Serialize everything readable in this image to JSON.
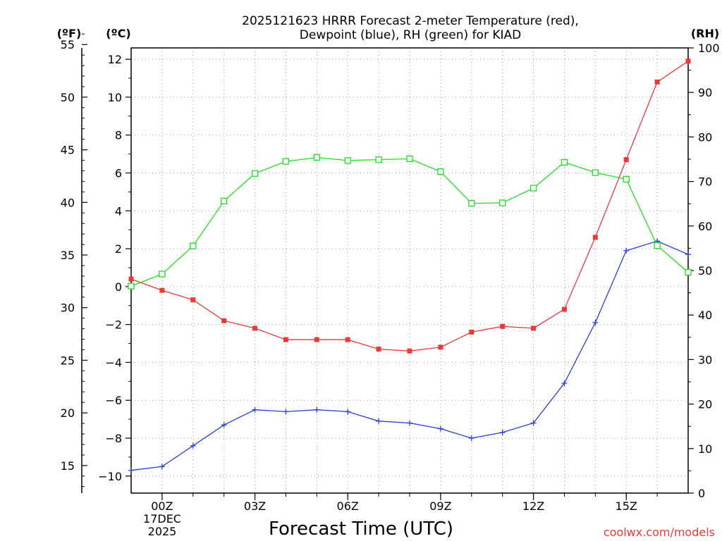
{
  "chart_data": {
    "type": "line",
    "title_line1": "2025121623 HRRR Forecast 2-meter Temperature (red),",
    "title_line2": "Dewpoint (blue), RH (green) for KIAD",
    "xlabel": "Forecast Time (UTC)",
    "credit": "coolwx.com/models",
    "date_label_1": "17DEC",
    "date_label_2": "2025",
    "x_hours": [
      -1,
      0,
      1,
      2,
      3,
      4,
      5,
      6,
      7,
      8,
      9,
      10,
      11,
      12,
      13,
      14,
      15,
      16,
      17
    ],
    "xlim": [
      -1,
      17
    ],
    "x_ticks": [
      {
        "hour": 0,
        "label": "00Z"
      },
      {
        "hour": 3,
        "label": "03Z"
      },
      {
        "hour": 6,
        "label": "06Z"
      },
      {
        "hour": 9,
        "label": "09Z"
      },
      {
        "hour": 12,
        "label": "12Z"
      },
      {
        "hour": 15,
        "label": "15Z"
      }
    ],
    "y_left_c": {
      "unit_label": "(ºC)",
      "range": [
        -10.9,
        12.6
      ],
      "ticks": [
        -10,
        -8,
        -6,
        -4,
        -2,
        0,
        2,
        4,
        6,
        8,
        10,
        12
      ]
    },
    "y_left_f": {
      "unit_label": "(ºF)",
      "ticks": [
        15,
        20,
        25,
        30,
        35,
        40,
        45,
        50,
        55
      ]
    },
    "y_right_rh": {
      "unit_label": "(RH)",
      "range": [
        0,
        100
      ],
      "ticks": [
        0,
        10,
        20,
        30,
        40,
        50,
        60,
        70,
        80,
        90,
        100
      ]
    },
    "series": [
      {
        "name": "Temperature",
        "color": "#e83a3a",
        "units": "C",
        "values": [
          0.4,
          -0.2,
          -0.7,
          -1.8,
          -2.2,
          -2.8,
          -2.8,
          -2.8,
          -3.3,
          -3.4,
          -3.2,
          -2.4,
          -2.1,
          -2.2,
          -1.2,
          2.6,
          6.7,
          10.8,
          11.9
        ]
      },
      {
        "name": "Dewpoint",
        "color": "#2a3de0",
        "units": "C",
        "values": [
          -9.7,
          -9.5,
          -8.4,
          -7.3,
          -6.5,
          -6.6,
          -6.5,
          -6.6,
          -7.1,
          -7.2,
          -7.5,
          -8.0,
          -7.7,
          -7.2,
          -5.1,
          -1.9,
          1.9,
          2.4,
          1.7
        ]
      },
      {
        "name": "RH",
        "color": "#22dd22",
        "units": "%",
        "values": [
          46.5,
          49.2,
          55.5,
          65.6,
          71.8,
          74.5,
          75.4,
          74.7,
          74.9,
          75.1,
          72.2,
          65.1,
          65.2,
          68.5,
          74.3,
          72.0,
          70.5,
          55.6,
          49.6
        ]
      }
    ]
  }
}
